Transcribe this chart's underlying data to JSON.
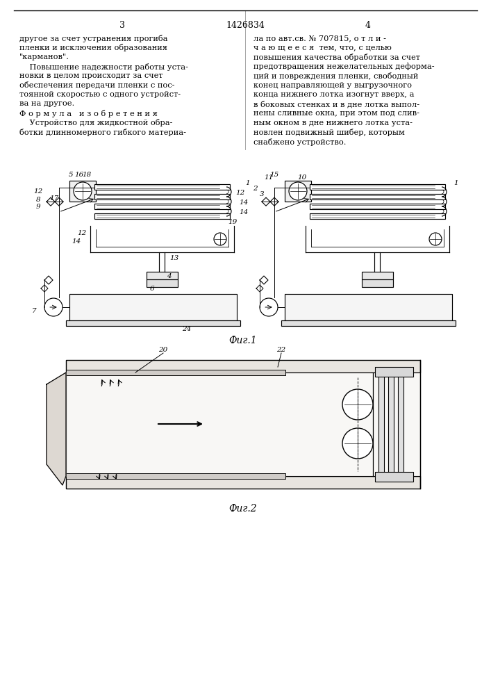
{
  "bg_color": "#ffffff",
  "title_patent": "1426834",
  "page_left": "3",
  "page_right": "4",
  "fig1_caption": "Фиг.1",
  "fig2_caption": "Фиг.2",
  "text_col1": [
    "другое за счет устранения прогиба",
    "пленки и исключения образования",
    "\"карманов\".",
    "    Повышение надежности работы уста-",
    "новки в целом происходит за счет",
    "обеспечения передачи пленки с пос-",
    "тоянной скоростью с одного устройст-",
    "ва на другое.",
    "Ф о р м у л а   и з о б р е т е н и я",
    "    Устройство для жидкостной обра-",
    "ботки длинномерного гибкого материа-"
  ],
  "text_col2": [
    "ла по авт.св. № 707815, о т л и -",
    "ч а ю щ е е с я  тем, что, с целью",
    "повышения качества обработки за счет",
    "предотвращения нежелательных деформа-",
    "ций и повреждения пленки, свободный",
    "конец направляющей у выгрузочного",
    "конца нижнего лотка изогнут вверх, а",
    "в боковых стенках и в дне лотка выпол-",
    "нены сливные окна, при этом под слив-",
    "ным окном в дне нижнего лотка уста-",
    "новлен подвижный шибер, которым",
    "снабжено устройство."
  ],
  "lc": "#000000",
  "tc": "#000000"
}
